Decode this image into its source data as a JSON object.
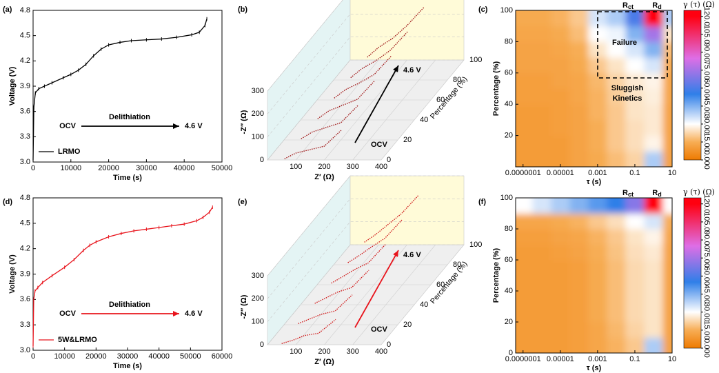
{
  "chart_data": [
    {
      "type": "line",
      "panel_label": "(a)",
      "x_label": "Time (s)",
      "y_label": "Voltage (V)",
      "xlim": [
        0,
        50000
      ],
      "xticks": [
        0,
        10000,
        20000,
        30000,
        40000,
        50000
      ],
      "ylim": [
        3,
        4.8
      ],
      "yticks": [
        {
          "value": 3,
          "label": "3.0"
        },
        3.3,
        3.6,
        3.9,
        4.2,
        4.5,
        4.8
      ],
      "legend": "lower left",
      "annotation_color": "#000000",
      "start_label": "OCV",
      "process_label": "Delithiation",
      "end_label": "4.6 V",
      "x": [
        0,
        200,
        600,
        1500,
        3000,
        5000,
        8000,
        10000,
        12000,
        14000,
        16000,
        18000,
        20000,
        23000,
        26000,
        30000,
        34000,
        38000,
        42000,
        44000,
        45500,
        46000
      ],
      "series": [
        {
          "name": "LRMO",
          "color": "#000000",
          "values": [
            3.02,
            3.65,
            3.82,
            3.87,
            3.9,
            3.94,
            4.0,
            4.04,
            4.09,
            4.16,
            4.26,
            4.34,
            4.39,
            4.42,
            4.44,
            4.45,
            4.46,
            4.48,
            4.51,
            4.54,
            4.62,
            4.7
          ]
        }
      ]
    },
    {
      "type": "waterfall3d",
      "panel_label": "(b)",
      "x_label": "Z′ (Ω)",
      "y_label": "-Z″ (Ω)",
      "z_label": "Percentage (%)",
      "xlim": [
        0,
        400
      ],
      "xticks": [
        100,
        200,
        300,
        400
      ],
      "ylim": [
        0,
        300
      ],
      "yticks": [
        0,
        100,
        200,
        300
      ],
      "zlim": [
        0,
        100
      ],
      "zticks": [
        0,
        20,
        40,
        60,
        80,
        100
      ],
      "color": "#a01818",
      "annotation_color": "#000000",
      "start_label": "OCV",
      "end_label": "4.6 V",
      "x": [
        60,
        100,
        150,
        200,
        260
      ],
      "series": [
        {
          "percentage": 0,
          "values": [
            5,
            30,
            45,
            60,
            130
          ]
        },
        {
          "percentage": 20,
          "values": [
            5,
            35,
            55,
            75,
            150
          ]
        },
        {
          "percentage": 40,
          "values": [
            5,
            40,
            65,
            90,
            170
          ]
        },
        {
          "percentage": 60,
          "values": [
            8,
            45,
            75,
            110,
            190
          ]
        },
        {
          "percentage": 80,
          "values": [
            10,
            50,
            85,
            130,
            210
          ]
        },
        {
          "percentage": 100,
          "values": [
            12,
            55,
            95,
            150,
            230
          ]
        }
      ]
    },
    {
      "type": "heatmap",
      "panel_label": "(c)",
      "x_label": "τ (s)",
      "y_label": "Percentage (%)",
      "colorbar_label": "γ (τ) (Ω)",
      "log_x": true,
      "xlim": [
        4e-08,
        10
      ],
      "xticks": [
        {
          "value": 1e-07,
          "label": "0.0000001"
        },
        {
          "value": 1e-05,
          "label": "0.00001"
        },
        0.001,
        0.1,
        10
      ],
      "ylim": [
        0,
        100
      ],
      "yticks": [
        20,
        40,
        60,
        80,
        100
      ],
      "clim": [
        0,
        125
      ],
      "cticks": [
        {
          "value": 0,
          "label": "0.000"
        },
        {
          "value": 15,
          "label": "15.00"
        },
        {
          "value": 30,
          "label": "30.00"
        },
        {
          "value": 45,
          "label": "45.00"
        },
        {
          "value": 60,
          "label": "60.00"
        },
        {
          "value": 75,
          "label": "75.00"
        },
        {
          "value": 90,
          "label": "90.00"
        },
        {
          "value": 105,
          "label": "105.0"
        },
        {
          "value": 120,
          "label": "120.0"
        }
      ],
      "colormap": [
        [
          0,
          "#ee7a00"
        ],
        [
          15,
          "#f7ad55"
        ],
        [
          30,
          "#ffffff"
        ],
        [
          55,
          "#2f7fe8"
        ],
        [
          85,
          "#de6ee6"
        ],
        [
          120,
          "#ff0010"
        ]
      ],
      "peaks": [
        {
          "label": "R",
          "sub": "ct"
        },
        {
          "label": "R",
          "sub": "d"
        }
      ],
      "failure_label": "Failure",
      "kinetics_label": [
        "Sluggish",
        "Kinetics"
      ],
      "x": [
        1e-07,
        1e-06,
        1e-05,
        0.0001,
        0.001,
        0.01,
        0.1,
        1,
        10
      ],
      "y": [
        5,
        15,
        25,
        35,
        45,
        55,
        65,
        75,
        85,
        95
      ],
      "z": [
        [
          10,
          10,
          10,
          12,
          14,
          18,
          22,
          40,
          12
        ],
        [
          10,
          10,
          10,
          12,
          15,
          20,
          24,
          28,
          12
        ],
        [
          10,
          10,
          11,
          12,
          15,
          20,
          24,
          26,
          12
        ],
        [
          10,
          10,
          11,
          12,
          16,
          20,
          25,
          26,
          12
        ],
        [
          11,
          11,
          11,
          13,
          16,
          21,
          25,
          27,
          13
        ],
        [
          11,
          11,
          12,
          13,
          17,
          22,
          26,
          28,
          13
        ],
        [
          12,
          12,
          12,
          14,
          20,
          25,
          30,
          35,
          15
        ],
        [
          12,
          12,
          13,
          15,
          25,
          30,
          35,
          45,
          18
        ],
        [
          13,
          13,
          14,
          18,
          30,
          32,
          45,
          75,
          25
        ],
        [
          14,
          14,
          16,
          20,
          35,
          40,
          60,
          120,
          40
        ]
      ]
    },
    {
      "type": "line",
      "panel_label": "(d)",
      "x_label": "Time (s)",
      "y_label": "Voltage (V)",
      "xlim": [
        0,
        60000
      ],
      "xticks": [
        0,
        10000,
        20000,
        30000,
        40000,
        50000,
        60000
      ],
      "ylim": [
        3,
        4.8
      ],
      "yticks": [
        {
          "value": 3,
          "label": "3.0"
        },
        3.3,
        3.6,
        3.9,
        4.2,
        4.5,
        4.8
      ],
      "legend": "lower left",
      "annotation_color": "#e8141c",
      "start_label": "OCV",
      "process_label": "Delithiation",
      "end_label": "4.6 V",
      "x": [
        0,
        200,
        600,
        1500,
        3000,
        6000,
        10000,
        13000,
        16000,
        18000,
        20000,
        24000,
        28000,
        32000,
        36000,
        40000,
        44000,
        48000,
        52000,
        54000,
        56000,
        57000
      ],
      "series": [
        {
          "name": "5W&LRMO",
          "color": "#e8141c",
          "values": [
            3.05,
            3.6,
            3.7,
            3.74,
            3.8,
            3.88,
            3.98,
            4.07,
            4.18,
            4.24,
            4.28,
            4.34,
            4.38,
            4.41,
            4.43,
            4.45,
            4.47,
            4.49,
            4.53,
            4.57,
            4.63,
            4.69
          ]
        }
      ]
    },
    {
      "type": "waterfall3d",
      "panel_label": "(e)",
      "x_label": "Z′ (Ω)",
      "y_label": "-Z″ (Ω)",
      "z_label": "Percentage (%)",
      "xlim": [
        0,
        400
      ],
      "xticks": [
        100,
        200,
        300,
        400
      ],
      "ylim": [
        0,
        300
      ],
      "yticks": [
        0,
        100,
        200,
        300
      ],
      "zlim": [
        0,
        100
      ],
      "zticks": [
        0,
        20,
        40,
        60,
        80,
        100
      ],
      "color": "#d01a1a",
      "annotation_color": "#e8141c",
      "start_label": "OCV",
      "end_label": "4.6 V",
      "x": [
        50,
        90,
        130,
        180,
        240
      ],
      "series": [
        {
          "percentage": 0,
          "values": [
            5,
            20,
            40,
            50,
            110
          ]
        },
        {
          "percentage": 20,
          "values": [
            5,
            25,
            45,
            60,
            130
          ]
        },
        {
          "percentage": 40,
          "values": [
            6,
            30,
            55,
            75,
            150
          ]
        },
        {
          "percentage": 60,
          "values": [
            7,
            35,
            65,
            95,
            175
          ]
        },
        {
          "percentage": 80,
          "values": [
            9,
            40,
            75,
            115,
            195
          ]
        },
        {
          "percentage": 100,
          "values": [
            11,
            45,
            85,
            135,
            215
          ]
        }
      ]
    },
    {
      "type": "heatmap",
      "panel_label": "(f)",
      "x_label": "τ (s)",
      "y_label": "Percentage (%)",
      "colorbar_label": "γ (τ) (Ω)",
      "log_x": true,
      "xlim": [
        4e-08,
        10
      ],
      "xticks": [
        {
          "value": 1e-07,
          "label": "0.0000001"
        },
        {
          "value": 1e-05,
          "label": "0.00001"
        },
        0.001,
        0.1,
        10
      ],
      "ylim": [
        0,
        100
      ],
      "yticks": [
        0,
        20,
        40,
        60,
        80,
        100
      ],
      "clim": [
        0,
        125
      ],
      "cticks": [
        {
          "value": 0,
          "label": "0.000"
        },
        {
          "value": 15,
          "label": "15.00"
        },
        {
          "value": 30,
          "label": "30.00"
        },
        {
          "value": 45,
          "label": "45.00"
        },
        {
          "value": 60,
          "label": "60.00"
        },
        {
          "value": 75,
          "label": "75.00"
        },
        {
          "value": 90,
          "label": "90.00"
        },
        {
          "value": 105,
          "label": "105.0"
        },
        {
          "value": 120,
          "label": "120.0"
        }
      ],
      "colormap": [
        [
          0,
          "#ee7a00"
        ],
        [
          15,
          "#f7ad55"
        ],
        [
          30,
          "#ffffff"
        ],
        [
          55,
          "#2f7fe8"
        ],
        [
          85,
          "#de6ee6"
        ],
        [
          120,
          "#ff0010"
        ]
      ],
      "peaks": [
        {
          "label": "R",
          "sub": "ct"
        },
        {
          "label": "R",
          "sub": "d"
        }
      ],
      "x": [
        1e-07,
        1e-06,
        1e-05,
        0.0001,
        0.001,
        0.01,
        0.1,
        1,
        10
      ],
      "y": [
        5,
        15,
        25,
        35,
        45,
        55,
        65,
        75,
        85,
        95
      ],
      "z": [
        [
          10,
          10,
          10,
          11,
          13,
          16,
          20,
          40,
          12
        ],
        [
          10,
          10,
          10,
          11,
          13,
          17,
          22,
          25,
          12
        ],
        [
          10,
          10,
          10,
          11,
          14,
          18,
          23,
          25,
          12
        ],
        [
          10,
          10,
          10,
          11,
          14,
          18,
          23,
          25,
          12
        ],
        [
          10,
          10,
          10,
          11,
          14,
          18,
          23,
          25,
          12
        ],
        [
          10,
          10,
          10,
          11,
          14,
          18,
          23,
          25,
          12
        ],
        [
          10,
          10,
          11,
          12,
          15,
          19,
          24,
          26,
          12
        ],
        [
          11,
          11,
          12,
          13,
          16,
          20,
          25,
          28,
          13
        ],
        [
          13,
          13,
          14,
          16,
          20,
          24,
          30,
          35,
          15
        ],
        [
          30,
          35,
          40,
          45,
          50,
          55,
          70,
          120,
          30
        ]
      ]
    }
  ]
}
